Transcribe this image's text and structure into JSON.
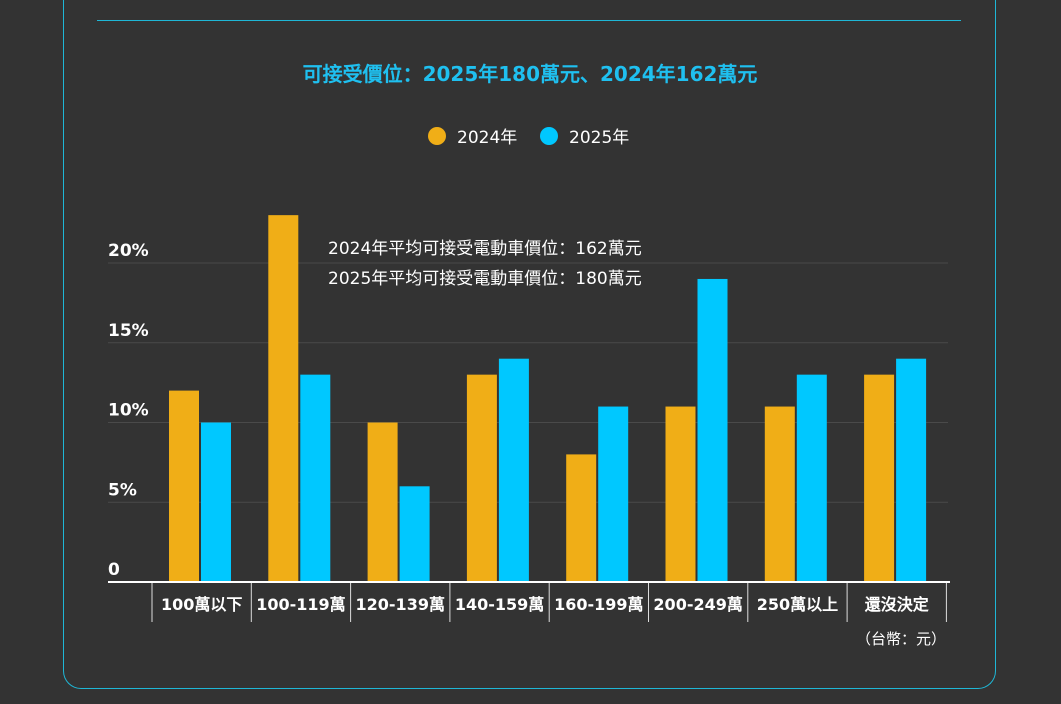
{
  "chart_data": {
    "type": "bar",
    "title": "可接受價位：2025年180萬元、2024年162萬元",
    "categories": [
      "100萬以下",
      "100-119萬",
      "120-139萬",
      "140-159萬",
      "160-199萬",
      "200-249萬",
      "250萬以上",
      "還沒決定"
    ],
    "series": [
      {
        "name": "2024年",
        "color": "#f0ae17",
        "values": [
          12,
          23,
          10,
          13,
          8,
          11,
          11,
          13
        ]
      },
      {
        "name": "2025年",
        "color": "#00c8ff",
        "values": [
          10,
          13,
          6,
          14,
          11,
          19,
          13,
          14
        ]
      }
    ],
    "yticks": [
      0,
      5,
      10,
      15,
      20
    ],
    "ytick_labels": [
      "0",
      "5%",
      "10%",
      "15%",
      "20%"
    ],
    "ylim": [
      0,
      25
    ],
    "grid": true,
    "legend": "top-center",
    "annotations": [
      "2024年平均可接受電動車價位：162萬元",
      "2025年平均可接受電動車價位：180萬元"
    ],
    "unit_note": "（台幣：元）",
    "title_color": "#1fc0f0"
  }
}
